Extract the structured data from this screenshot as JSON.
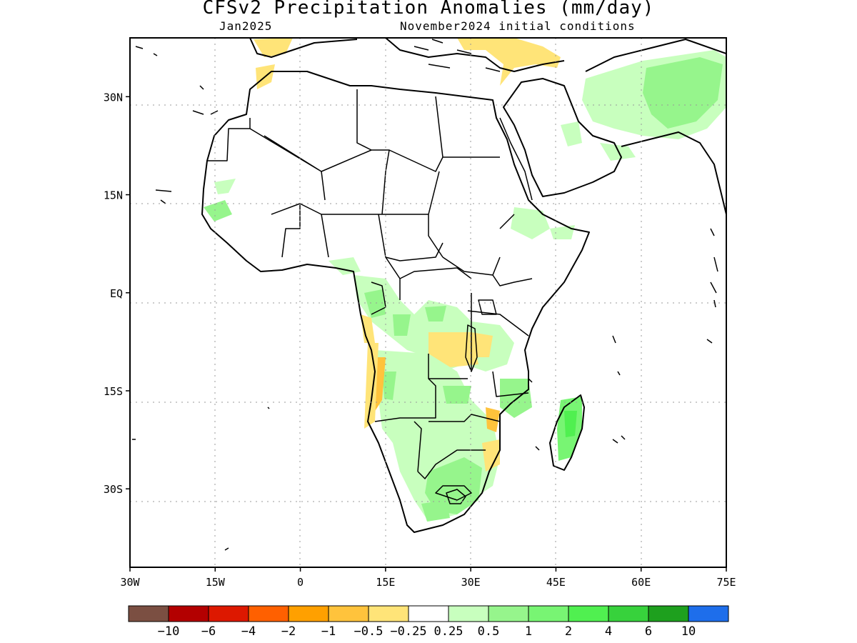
{
  "title": "CFSv2 Precipitation Anomalies (mm/day)",
  "subtitle_left": "Jan2025",
  "subtitle_right": "November2024 initial conditions",
  "map": {
    "lon_range": [
      -30,
      75
    ],
    "lat_range": [
      -42,
      39
    ],
    "lat_ticks": [
      {
        "value": 30,
        "label": "30N"
      },
      {
        "value": 15,
        "label": "15N"
      },
      {
        "value": 0,
        "label": "EQ"
      },
      {
        "value": -15,
        "label": "15S"
      },
      {
        "value": -30,
        "label": "30S"
      }
    ],
    "lon_ticks": [
      {
        "value": -30,
        "label": "30W"
      },
      {
        "value": -15,
        "label": "15W"
      },
      {
        "value": 0,
        "label": "0"
      },
      {
        "value": 15,
        "label": "15E"
      },
      {
        "value": 30,
        "label": "30E"
      },
      {
        "value": 45,
        "label": "45E"
      },
      {
        "value": 60,
        "label": "60E"
      },
      {
        "value": 75,
        "label": "75E"
      }
    ],
    "gridlines": true
  },
  "colorbar": {
    "colors": [
      "#7b4f42",
      "#b30000",
      "#dd1800",
      "#ff6000",
      "#ffa000",
      "#ffc33c",
      "#ffe478",
      "#ffffff",
      "#c8ffbe",
      "#96f58c",
      "#78f573",
      "#50f050",
      "#37d23c",
      "#1ea01e",
      "#1e6eeb"
    ],
    "labels": [
      "−10",
      "−6",
      "−4",
      "−2",
      "−1",
      "−0.5",
      "−0.25",
      "0.25",
      "0.5",
      "1",
      "2",
      "4",
      "6",
      "10"
    ]
  },
  "anomaly_colors": {
    "green_light": "#c8ffbe",
    "green_mid": "#96f58c",
    "green_strong": "#50f050",
    "yellow": "#ffe478",
    "orange": "#ffc33c"
  }
}
